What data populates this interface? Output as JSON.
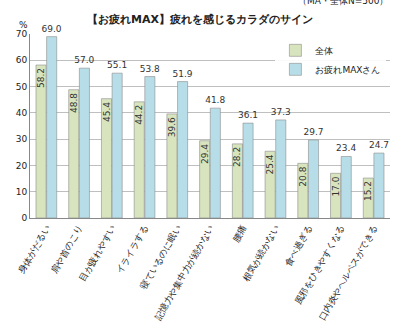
{
  "chart_data": {
    "type": "bar",
    "title": "【お疲れMAX】疲れを感じるカラダのサイン",
    "subtitle": "（MA・全体N=500）",
    "y_label": "%",
    "categories": [
      "身体がだるい",
      "肩や首のこり",
      "目が疲れやすい",
      "イライラする",
      "寝ているのに眠い",
      "記憶力や集中力が続かない",
      "腰痛",
      "根気が続かない",
      "食べ過ぎる",
      "風邪をひきやすくなる",
      "口内炎やヘルペスができる"
    ],
    "series": [
      {
        "name": "全体",
        "color": "#d7e4bd",
        "values": [
          58.2,
          48.8,
          45.4,
          44.2,
          39.6,
          29.4,
          28.2,
          25.4,
          20.8,
          17.0,
          15.2
        ],
        "value_labels": [
          "58.2",
          "48.8",
          "45.4",
          "44.2",
          "39.6",
          "29.4",
          "28.2",
          "25.4",
          "20.8",
          "17.0",
          "15.2"
        ]
      },
      {
        "name": "お疲れMAXさん",
        "color": "#b7dee8",
        "values": [
          69.0,
          57.0,
          55.1,
          53.8,
          51.9,
          41.8,
          36.1,
          37.3,
          29.7,
          23.4,
          24.7
        ],
        "value_labels": [
          "69.0",
          "57.0",
          "55.1",
          "53.8",
          "51.9",
          "41.8",
          "36.1",
          "37.3",
          "29.7",
          "23.4",
          "24.7"
        ]
      }
    ],
    "ylim": [
      0,
      70
    ],
    "yticks": [
      0,
      10,
      20,
      30,
      40,
      50,
      60,
      70
    ],
    "grid": true,
    "legend": "upper right",
    "data_labels": true
  }
}
